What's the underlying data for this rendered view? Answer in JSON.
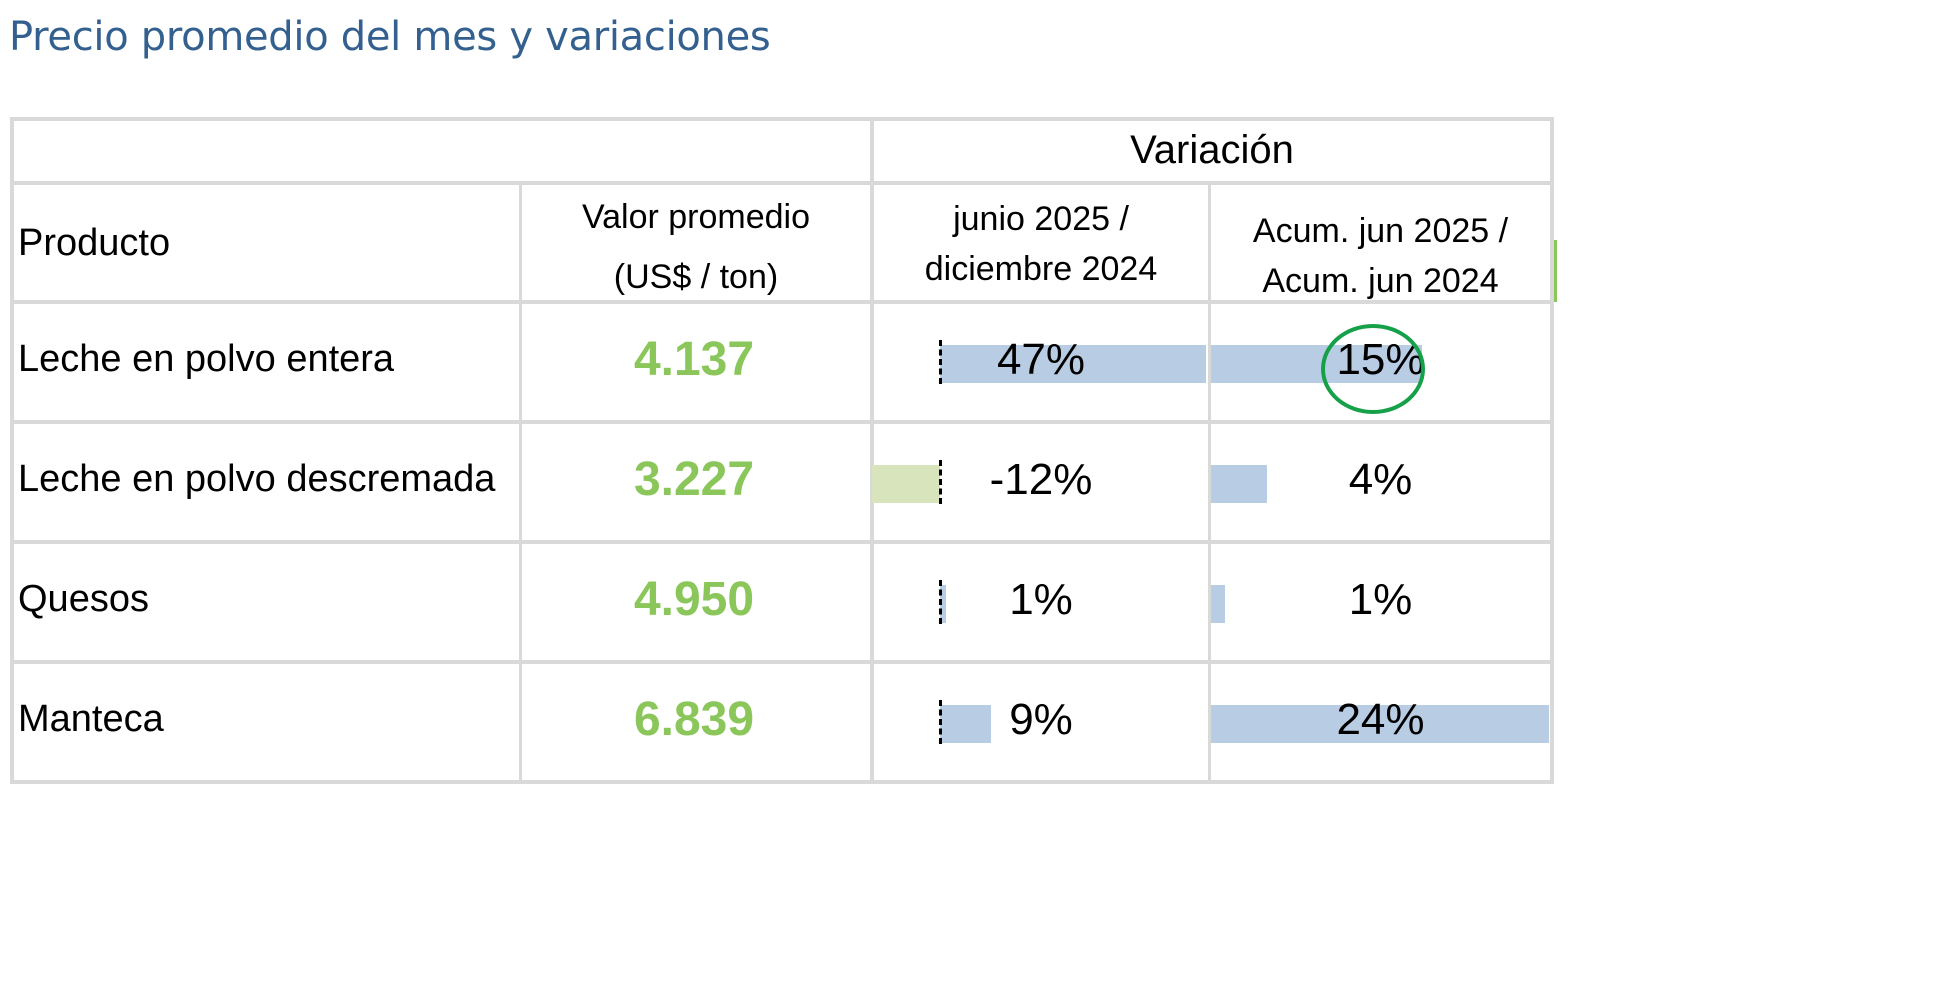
{
  "title": "Precio promedio del mes y variaciones",
  "table": {
    "group_header": "Variación",
    "columns": {
      "product": "Producto",
      "value_line1": "Valor promedio",
      "value_line2": "(US$ / ton)",
      "var1_line1": "junio 2025 /",
      "var1_line2": "diciembre 2024",
      "var2_line1": "Acum. jun 2025 /",
      "var2_line2": "Acum. jun 2024"
    },
    "rows": [
      {
        "product": "Leche en polvo entera",
        "value": "4.137",
        "var1": "47%",
        "var2": "15%"
      },
      {
        "product": "Leche en polvo descremada",
        "value": "3.227",
        "var1": "-12%",
        "var2": "4%"
      },
      {
        "product": "Quesos",
        "value": "4.950",
        "var1": "1%",
        "var2": "1%"
      },
      {
        "product": "Manteca",
        "value": "6.839",
        "var1": "9%",
        "var2": "24%"
      }
    ]
  },
  "chart_data": {
    "type": "table",
    "categories": [
      "Leche en polvo entera",
      "Leche en polvo descremada",
      "Quesos",
      "Manteca"
    ],
    "series": [
      {
        "name": "Valor promedio (US$ / ton)",
        "values": [
          4137,
          3227,
          4950,
          6839
        ]
      },
      {
        "name": "junio 2025 / diciembre 2024",
        "values": [
          47,
          -12,
          1,
          9
        ]
      },
      {
        "name": "Acum. jun 2025 / Acum. jun 2024",
        "values": [
          15,
          4,
          1,
          24
        ]
      }
    ],
    "highlighted": {
      "row": "Leche en polvo entera",
      "column": "Acum. jun 2025 / Acum. jun 2024",
      "value": "15%"
    }
  },
  "colors": {
    "title": "#34608f",
    "value_text": "#8ac65a",
    "positive_bar": "#b8cce4",
    "negative_bar": "#d8e4bc",
    "highlight_ring": "#17a04a",
    "grid": "#d9d9d9"
  }
}
